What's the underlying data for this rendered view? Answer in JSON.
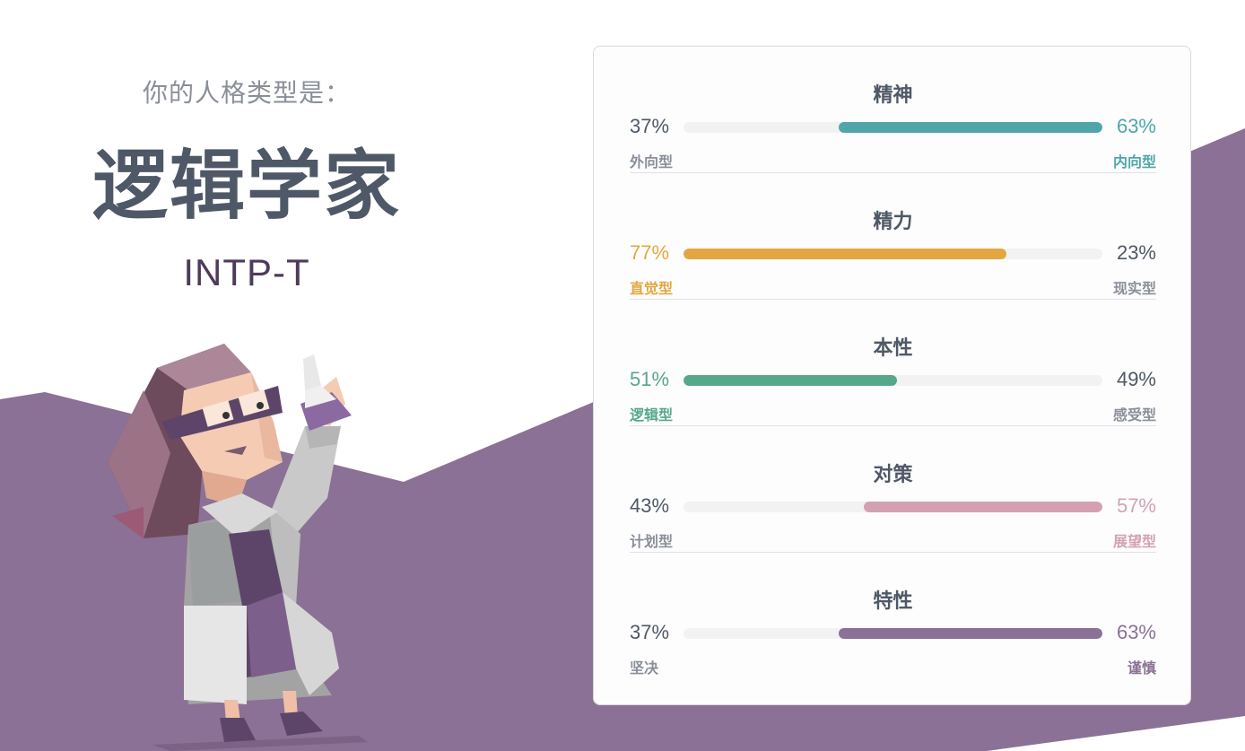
{
  "intro": {
    "subtitle": "你的人格类型是：",
    "type_name": "逻辑学家",
    "type_code": "INTP-T"
  },
  "colors": {
    "background_wave": "#8a7195",
    "text_dark": "#4f5866",
    "text_muted": "#8a8f99",
    "track": "#f2f2f3"
  },
  "traits": [
    {
      "title": "精神",
      "left_pct": "37%",
      "left_label": "外向型",
      "right_pct": "63%",
      "right_label": "内向型",
      "fill_side": "right",
      "fill_value": 63,
      "color": "#4fa6a8"
    },
    {
      "title": "精力",
      "left_pct": "77%",
      "left_label": "直觉型",
      "right_pct": "23%",
      "right_label": "现实型",
      "fill_side": "left",
      "fill_value": 77,
      "color": "#e2a741"
    },
    {
      "title": "本性",
      "left_pct": "51%",
      "left_label": "逻辑型",
      "right_pct": "49%",
      "right_label": "感受型",
      "fill_side": "left",
      "fill_value": 51,
      "color": "#56a88a"
    },
    {
      "title": "对策",
      "left_pct": "43%",
      "left_label": "计划型",
      "right_pct": "57%",
      "right_label": "展望型",
      "fill_side": "right",
      "fill_value": 57,
      "color": "#d4a1b3"
    },
    {
      "title": "特性",
      "left_pct": "37%",
      "left_label": "坚决",
      "right_pct": "63%",
      "right_label": "谨慎",
      "fill_side": "right",
      "fill_value": 63,
      "color": "#8a7195"
    }
  ],
  "illustration": {
    "icon": "logician-character-illustration"
  }
}
